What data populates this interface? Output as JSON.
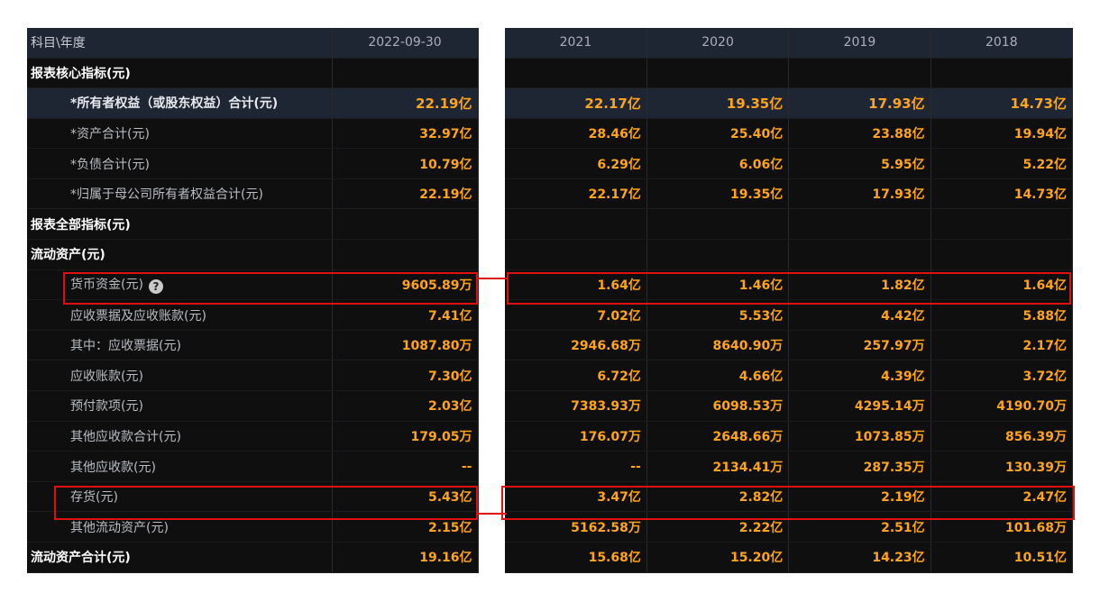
{
  "left_header": {
    "label": "科目\\年度",
    "period": "2022-09-30"
  },
  "right_header": [
    "2021",
    "2020",
    "2019",
    "2018"
  ],
  "rows": [
    {
      "label": "报表核心指标(元)",
      "type": "section",
      "values": [
        "",
        "",
        "",
        "",
        ""
      ]
    },
    {
      "label": "*所有者权益（或股东权益）合计(元)",
      "type": "core",
      "values": [
        "22.19亿",
        "22.17亿",
        "19.35亿",
        "17.93亿",
        "14.73亿"
      ]
    },
    {
      "label": "*资产合计(元)",
      "type": "item",
      "values": [
        "32.97亿",
        "28.46亿",
        "25.40亿",
        "23.88亿",
        "19.94亿"
      ]
    },
    {
      "label": "*负债合计(元)",
      "type": "item",
      "values": [
        "10.79亿",
        "6.29亿",
        "6.06亿",
        "5.95亿",
        "5.22亿"
      ]
    },
    {
      "label": "*归属于母公司所有者权益合计(元)",
      "type": "item",
      "values": [
        "22.19亿",
        "22.17亿",
        "19.35亿",
        "17.93亿",
        "14.73亿"
      ]
    },
    {
      "label": "报表全部指标(元)",
      "type": "section",
      "values": [
        "",
        "",
        "",
        "",
        ""
      ]
    },
    {
      "label": "流动资产(元)",
      "type": "section",
      "values": [
        "",
        "",
        "",
        "",
        ""
      ]
    },
    {
      "label": "货币资金(元)",
      "type": "item",
      "help": "?",
      "values": [
        "9605.89万",
        "1.64亿",
        "1.46亿",
        "1.82亿",
        "1.64亿"
      ]
    },
    {
      "label": "应收票据及应收账款(元)",
      "type": "item",
      "values": [
        "7.41亿",
        "7.02亿",
        "5.53亿",
        "4.42亿",
        "5.88亿"
      ]
    },
    {
      "label": "其中：应收票据(元)",
      "type": "item",
      "values": [
        "1087.80万",
        "2946.68万",
        "8640.90万",
        "257.97万",
        "2.17亿"
      ]
    },
    {
      "label": "应收账款(元)",
      "type": "item",
      "values": [
        "7.30亿",
        "6.72亿",
        "4.66亿",
        "4.39亿",
        "3.72亿"
      ]
    },
    {
      "label": "预付款项(元)",
      "type": "item",
      "values": [
        "2.03亿",
        "7383.93万",
        "6098.53万",
        "4295.14万",
        "4190.70万"
      ]
    },
    {
      "label": "其他应收款合计(元)",
      "type": "item",
      "values": [
        "179.05万",
        "176.07万",
        "2648.66万",
        "1073.85万",
        "856.39万"
      ]
    },
    {
      "label": "其他应收款(元)",
      "type": "item",
      "values": [
        "--",
        "--",
        "2134.41万",
        "287.35万",
        "130.39万"
      ]
    },
    {
      "label": "存货(元)",
      "type": "item",
      "values": [
        "5.43亿",
        "3.47亿",
        "2.82亿",
        "2.19亿",
        "2.47亿"
      ]
    },
    {
      "label": "其他流动资产(元)",
      "type": "item",
      "values": [
        "2.15亿",
        "5162.58万",
        "2.22亿",
        "2.51亿",
        "101.68万"
      ]
    },
    {
      "label": "流动资产合计(元)",
      "type": "section",
      "values": [
        "19.16亿",
        "15.68亿",
        "15.20亿",
        "14.23亿",
        "10.51亿"
      ]
    }
  ],
  "colors": {
    "header_bg": "#1e2533",
    "body_bg": "#0f0f10",
    "value": "#ffa41b",
    "highlight": "#e01010"
  }
}
